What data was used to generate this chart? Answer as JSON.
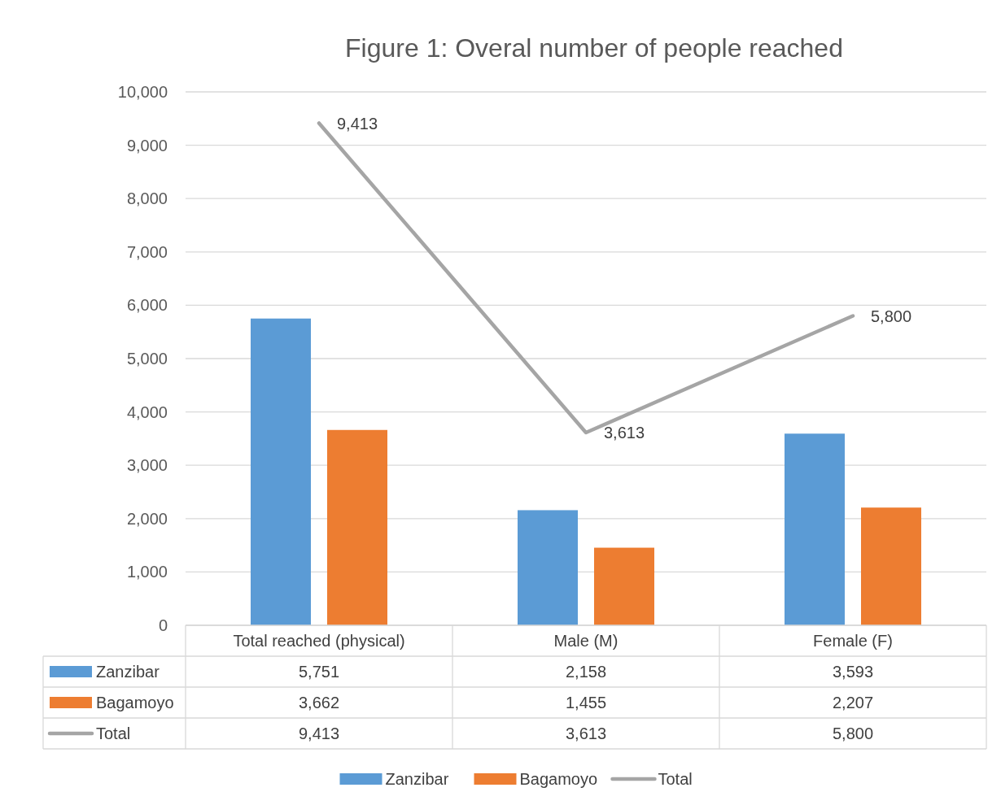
{
  "chart_data": {
    "type": "bar",
    "title": "Figure 1: Overal number  of people reached",
    "categories": [
      "Total reached (physical)",
      "Male (M)",
      "Female (F)"
    ],
    "series": [
      {
        "name": "Zanzibar",
        "color": "#5b9bd5",
        "values": [
          5751,
          2158,
          3593
        ],
        "value_labels": [
          "5,751",
          "2,158",
          "3,593"
        ]
      },
      {
        "name": "Bagamoyo",
        "color": "#ed7d31",
        "values": [
          3662,
          1455,
          2207
        ],
        "value_labels": [
          "3,662",
          "1,455",
          "2,207"
        ]
      },
      {
        "name": "Total",
        "type": "line",
        "color": "#a5a5a5",
        "values": [
          9413,
          3613,
          5800
        ],
        "value_labels": [
          "9,413",
          "3,613",
          "5,800"
        ]
      }
    ],
    "ylim": [
      0,
      10000
    ],
    "yticks": [
      {
        "value": 0,
        "label": "0"
      },
      {
        "value": 1000,
        "label": "1,000"
      },
      {
        "value": 2000,
        "label": "2,000"
      },
      {
        "value": 3000,
        "label": "3,000"
      },
      {
        "value": 4000,
        "label": "4,000"
      },
      {
        "value": 5000,
        "label": "5,000"
      },
      {
        "value": 6000,
        "label": "6,000"
      },
      {
        "value": 7000,
        "label": "7,000"
      },
      {
        "value": 8000,
        "label": "8,000"
      },
      {
        "value": 9000,
        "label": "9,000"
      },
      {
        "value": 10000,
        "label": "10,000"
      }
    ],
    "grid": "y",
    "legend": "bottom",
    "marker": "none",
    "line_style": "solid"
  }
}
